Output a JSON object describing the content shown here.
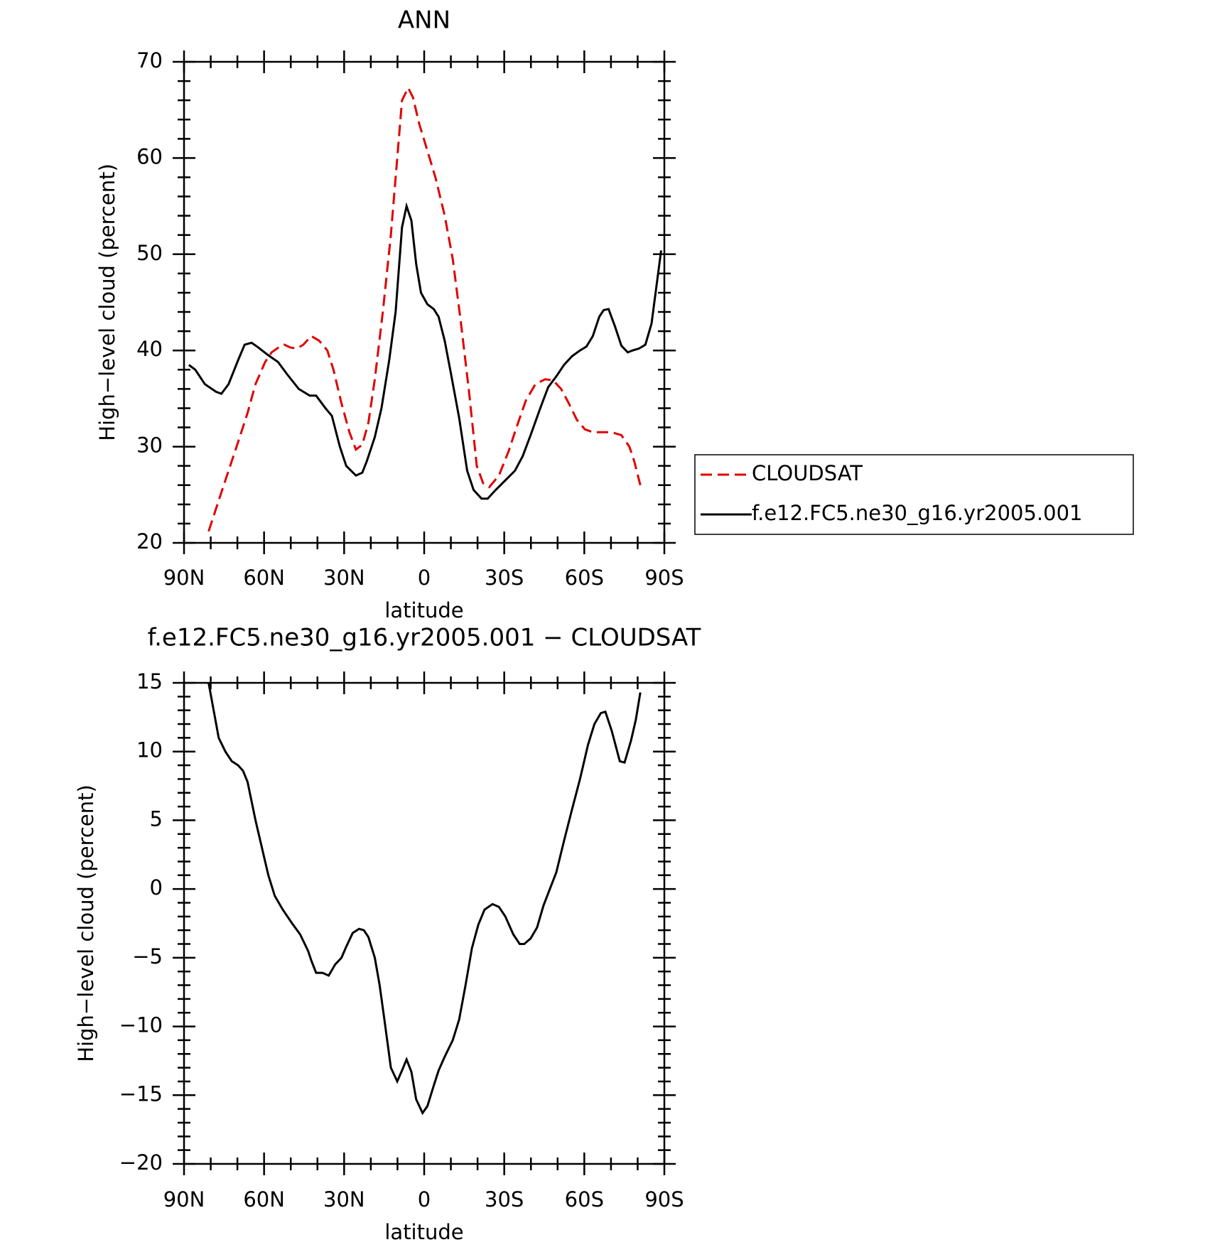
{
  "chart_data": [
    {
      "type": "line",
      "title": "ANN",
      "xlabel": "latitude",
      "ylabel": "High−level cloud (percent)",
      "xlim": [
        90,
        -90
      ],
      "xticks": [
        {
          "value": 90,
          "label": "90N"
        },
        {
          "value": 60,
          "label": "60N"
        },
        {
          "value": 30,
          "label": "30N"
        },
        0,
        {
          "value": -30,
          "label": "30S"
        },
        {
          "value": -60,
          "label": "60S"
        },
        {
          "value": -90,
          "label": "90S"
        }
      ],
      "xminorticks": [
        80,
        70,
        50,
        40,
        20,
        10,
        -10,
        -20,
        -40,
        -50,
        -70,
        -80
      ],
      "ylim": [
        20,
        70
      ],
      "yticks": [
        20,
        30,
        40,
        50,
        60,
        70
      ],
      "yminorticks": [
        22,
        24,
        26,
        28,
        32,
        34,
        36,
        38,
        42,
        44,
        46,
        48,
        52,
        54,
        56,
        58,
        62,
        64,
        66,
        68
      ],
      "legend": "right",
      "series": [
        {
          "name": "CLOUDSAT",
          "color": "#e00000",
          "dash": true,
          "x": [
            80.8,
            75.7,
            69.7,
            66.2,
            63.2,
            59.6,
            57.2,
            53.6,
            52.4,
            50.1,
            47.7,
            45.3,
            42.3,
            39.3,
            36.3,
            34,
            31,
            28,
            25.6,
            23.2,
            20.9,
            18.5,
            15.5,
            12.5,
            10.1,
            8.3,
            6,
            4.2,
            1.8,
            -0.6,
            -4.2,
            -7.7,
            -10.7,
            -13.7,
            -16.7,
            -19.7,
            -22.1,
            -24.4,
            -28,
            -31.6,
            -34.6,
            -38.1,
            -41.7,
            -45.3,
            -48.3,
            -51.3,
            -54.2,
            -57.2,
            -60.2,
            -63.2,
            -70.3,
            -73.9,
            -76.9,
            -78.7,
            -81
          ],
          "values": [
            21.2,
            25.5,
            30.5,
            33.5,
            36.5,
            38.8,
            39.8,
            40.5,
            40.6,
            40.3,
            40.2,
            40.6,
            41.5,
            41,
            40,
            38,
            34.5,
            31.5,
            29.7,
            30.2,
            32.5,
            37,
            44,
            52,
            60,
            66,
            67.3,
            66.3,
            63.5,
            61.3,
            58,
            54,
            49.5,
            43,
            36,
            28,
            26.2,
            25.8,
            27,
            29.5,
            32,
            34.8,
            36.5,
            37,
            36.9,
            36,
            34.5,
            32.8,
            31.8,
            31.5,
            31.5,
            31.2,
            30,
            28.5,
            26
          ]
        },
        {
          "name": "f.e12.FC5.ne30_g16.yr2005.001",
          "color": "#000000",
          "dash": false,
          "x": [
            88.2,
            85.8,
            82.2,
            78,
            76,
            73.3,
            69.7,
            67.3,
            64.7,
            62.6,
            58.4,
            54.8,
            51.3,
            47,
            42.9,
            40.5,
            37,
            34.6,
            31.6,
            29.2,
            25.6,
            23.2,
            21.5,
            18.5,
            16,
            13.1,
            10.7,
            8.3,
            6.6,
            4.8,
            3,
            1.2,
            -1.2,
            -3.6,
            -5.4,
            -7.7,
            -10.1,
            -13.1,
            -16.1,
            -18.5,
            -21.5,
            -23.8,
            -26.8,
            -30.4,
            -34,
            -36.9,
            -39.9,
            -43.5,
            -46.5,
            -49.5,
            -52.4,
            -55.4,
            -58.4,
            -60.8,
            -63.2,
            -65.6,
            -67.3,
            -69.1,
            -71.5,
            -73.9,
            -76.3,
            -78.1,
            -80.5,
            -82.9,
            -85.2,
            -88.8
          ],
          "values": [
            38.5,
            38,
            36.5,
            35.7,
            35.5,
            36.5,
            39,
            40.6,
            40.8,
            40.4,
            39.5,
            38.8,
            37.5,
            36,
            35.3,
            35.3,
            34,
            33.2,
            30,
            28,
            27,
            27.3,
            28.5,
            31,
            34,
            39,
            44,
            52.8,
            55,
            53.5,
            49,
            46,
            44.8,
            44.3,
            43.5,
            41,
            37.5,
            33,
            27.5,
            25.5,
            24.6,
            24.6,
            25.5,
            26.5,
            27.5,
            29,
            31.2,
            34,
            36.2,
            37.3,
            38.5,
            39.4,
            40,
            40.4,
            41.5,
            43.5,
            44.2,
            44.3,
            42.5,
            40.5,
            39.8,
            40,
            40.2,
            40.6,
            42.8,
            50.4
          ]
        }
      ]
    },
    {
      "type": "line",
      "title": "f.e12.FC5.ne30_g16.yr2005.001 − CLOUDSAT",
      "xlabel": "latitude",
      "ylabel": "High−level cloud (percent)",
      "xlim": [
        90,
        -90
      ],
      "xticks": [
        {
          "value": 90,
          "label": "90N"
        },
        {
          "value": 60,
          "label": "60N"
        },
        {
          "value": 30,
          "label": "30N"
        },
        0,
        {
          "value": -30,
          "label": "30S"
        },
        {
          "value": -60,
          "label": "60S"
        },
        {
          "value": -90,
          "label": "90S"
        }
      ],
      "xminorticks": [
        80,
        70,
        50,
        40,
        20,
        10,
        -10,
        -20,
        -40,
        -50,
        -70,
        -80
      ],
      "ylim": [
        -20,
        15
      ],
      "yticks": [
        {
          "value": -20,
          "label": "−20"
        },
        {
          "value": -15,
          "label": "−15"
        },
        {
          "value": -10,
          "label": "−10"
        },
        {
          "value": -5,
          "label": "−5"
        },
        0,
        5,
        10,
        15
      ],
      "yminorticks": [
        -19,
        -18,
        -17,
        -16,
        -14,
        -13,
        -12,
        -11,
        -9,
        -8,
        -7,
        -6,
        -4,
        -3,
        -2,
        -1,
        1,
        2,
        3,
        4,
        6,
        7,
        8,
        9,
        11,
        12,
        13,
        14
      ],
      "series": [
        {
          "color": "#000000",
          "dash": false,
          "x": [
            80.8,
            77,
            74.5,
            72.1,
            69.7,
            67.9,
            66.2,
            63.2,
            60.2,
            58.4,
            56,
            53,
            49.5,
            46.5,
            43.5,
            42.3,
            40.5,
            38.1,
            35.8,
            33.4,
            31,
            29.2,
            26.8,
            24.4,
            22.6,
            20.9,
            18.5,
            16.7,
            14.9,
            12.5,
            10.1,
            8.3,
            6.6,
            4.8,
            3,
            0.6,
            -1.2,
            -3.6,
            -5.4,
            -7.7,
            -10.7,
            -13.1,
            -15.5,
            -17.9,
            -20.3,
            -22.6,
            -25.6,
            -28,
            -30.4,
            -33.4,
            -35.8,
            -37.5,
            -39.9,
            -42.3,
            -44.7,
            -47.1,
            -49.5,
            -52.4,
            -55.4,
            -58.4,
            -61.4,
            -63.8,
            -66.2,
            -67.9,
            -70.3,
            -73.3,
            -75.1,
            -77.5,
            -79.3,
            -81
          ],
          "values": [
            15,
            11,
            10,
            9.3,
            9,
            8.6,
            7.8,
            5,
            2.5,
            1,
            -0.5,
            -1.5,
            -2.5,
            -3.3,
            -4.5,
            -5.2,
            -6.1,
            -6.1,
            -6.3,
            -5.5,
            -5,
            -4.2,
            -3.2,
            -2.9,
            -3,
            -3.5,
            -5,
            -7,
            -9.5,
            -13,
            -14,
            -13.2,
            -12.4,
            -13.3,
            -15.3,
            -16.3,
            -15.8,
            -14.3,
            -13.2,
            -12.2,
            -11,
            -9.5,
            -7,
            -4.3,
            -2.6,
            -1.5,
            -1.1,
            -1.3,
            -2,
            -3.3,
            -4,
            -4,
            -3.6,
            -2.8,
            -1.2,
            0,
            1.2,
            3.5,
            5.8,
            8,
            10.5,
            12,
            12.8,
            12.9,
            11.5,
            9.3,
            9.2,
            10.8,
            12.3,
            14.3
          ]
        }
      ]
    }
  ]
}
